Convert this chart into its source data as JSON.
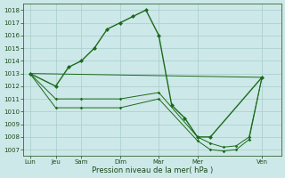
{
  "background_color": "#cde8e8",
  "grid_color": "#a8cccc",
  "line_color": "#1a6b1a",
  "xlabel": "Pression niveau de la mer( hPa )",
  "ylim_min": 1006.5,
  "ylim_max": 1018.5,
  "yticks": [
    1007,
    1008,
    1009,
    1010,
    1011,
    1012,
    1013,
    1014,
    1015,
    1016,
    1017,
    1018
  ],
  "xtick_labels": [
    "Lun",
    "Jeu",
    "Sam",
    "Dim",
    "Mar",
    "Mer",
    "Ven"
  ],
  "xtick_positions": [
    0,
    2,
    4,
    7,
    10,
    13,
    18
  ],
  "xlim_min": -0.5,
  "xlim_max": 19.5,
  "line_main_x": [
    0,
    2,
    3,
    4,
    5,
    6,
    7,
    8,
    9,
    10,
    11,
    12,
    13,
    14,
    18
  ],
  "line_main_y": [
    1013,
    1012,
    1013.5,
    1014,
    1015,
    1016.5,
    1017,
    1017.5,
    1018,
    1016,
    1010.5,
    1009.5,
    1008,
    1008,
    1012.7
  ],
  "line_spread1_x": [
    0,
    2,
    4,
    7,
    10,
    13,
    14,
    15,
    16,
    17,
    18
  ],
  "line_spread1_y": [
    1013,
    1011,
    1011,
    1011,
    1011.5,
    1008,
    1007.5,
    1007.2,
    1007.3,
    1008,
    1012.7
  ],
  "line_spread2_x": [
    0,
    2,
    4,
    7,
    10,
    13,
    14,
    15,
    16,
    17,
    18
  ],
  "line_spread2_y": [
    1013,
    1010.3,
    1010.3,
    1010.3,
    1011.0,
    1007.7,
    1007.0,
    1006.9,
    1007.0,
    1007.8,
    1012.7
  ],
  "line_trend_x": [
    0,
    18
  ],
  "line_trend_y": [
    1013,
    1012.7
  ]
}
